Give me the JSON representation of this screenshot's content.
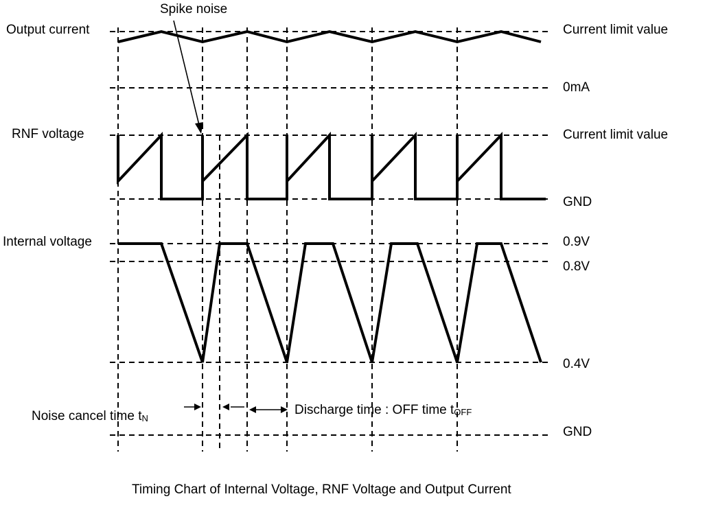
{
  "labels": {
    "spike_noise": "Spike  noise",
    "output_current": "Output  current",
    "rnf_voltage": "RNF voltage",
    "internal_voltage": "Internal voltage",
    "current_limit_top": "Current limit value",
    "zero_ma": "0mA",
    "current_limit_rnf": "Current limit value",
    "gnd_rnf": "GND",
    "v09": "0.9V",
    "v08": "0.8V",
    "v04": "0.4V",
    "gnd_bottom": "GND",
    "noise_cancel_main": "Noise  cancel  time  t",
    "noise_cancel_sub": "N",
    "discharge_main": "Discharge time : OFF time t",
    "discharge_sub": "OFF"
  },
  "caption": "Timing Chart of Internal Voltage, RNF Voltage and Output Current"
}
